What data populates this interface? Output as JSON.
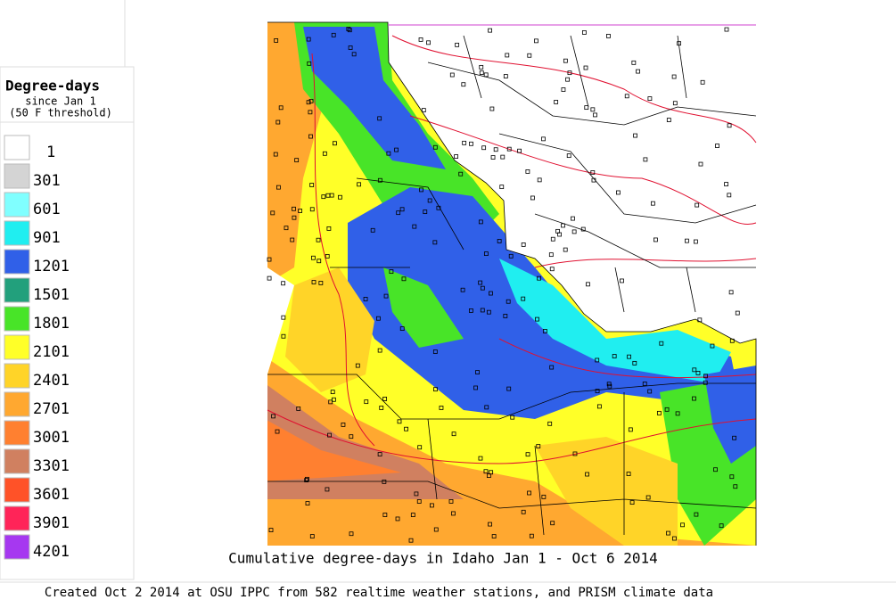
{
  "legend": {
    "title": "Degree-days",
    "subtitle": [
      "since Jan 1",
      "(50 F threshold)"
    ],
    "entries": [
      {
        "label": "1",
        "color": "#ffffff"
      },
      {
        "label": "301",
        "color": "#d4d4d4"
      },
      {
        "label": "601",
        "color": "#80ffff"
      },
      {
        "label": "901",
        "color": "#20eef0"
      },
      {
        "label": "1201",
        "color": "#3060e8"
      },
      {
        "label": "1501",
        "color": "#22a07c"
      },
      {
        "label": "1801",
        "color": "#48e428"
      },
      {
        "label": "2101",
        "color": "#ffff28"
      },
      {
        "label": "2401",
        "color": "#ffd428"
      },
      {
        "label": "2701",
        "color": "#ffa830"
      },
      {
        "label": "3001",
        "color": "#ff8030"
      },
      {
        "label": "3301",
        "color": "#d08060"
      },
      {
        "label": "3601",
        "color": "#ff5228"
      },
      {
        "label": "3901",
        "color": "#ff2458"
      },
      {
        "label": "4201",
        "color": "#a638f0"
      }
    ]
  },
  "map": {
    "title": "Cumulative degree-days in Idaho  Jan 1 - Oct 6 2014"
  },
  "footer": "Created Oct 2 2014 at OSU IPPC from 582 realtime weather stations, and PRISM climate data"
}
